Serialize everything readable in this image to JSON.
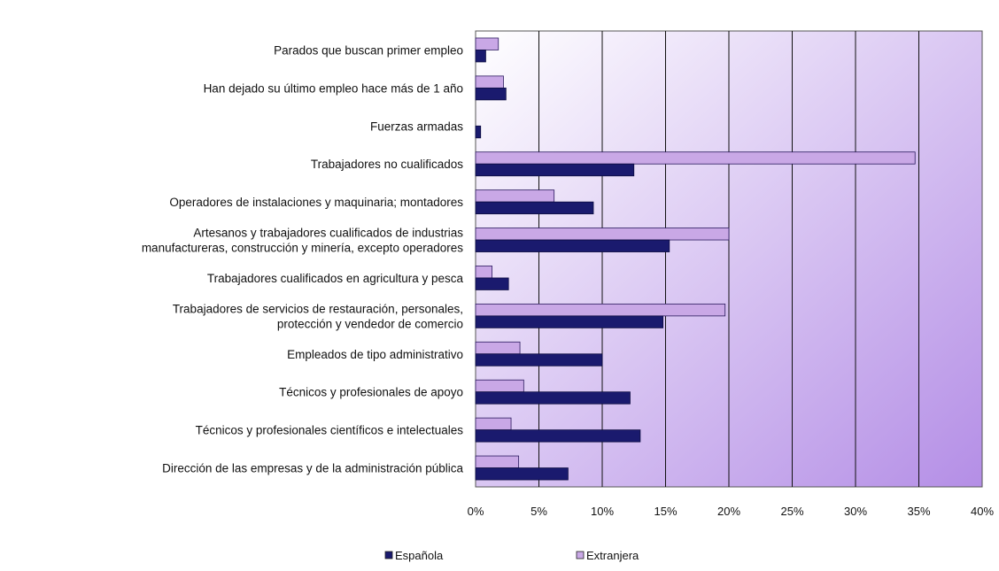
{
  "chart_data": {
    "type": "bar",
    "orientation": "horizontal",
    "categories": [
      [
        "Parados que buscan primer empleo"
      ],
      [
        "Han dejado su último empleo hace más de 1 año"
      ],
      [
        "Fuerzas armadas"
      ],
      [
        "Trabajadores no cualificados"
      ],
      [
        "Operadores de instalaciones y maquinaria; montadores"
      ],
      [
        "Artesanos y trabajadores cualificados de industrias",
        "manufactureras, construcción y minería, excepto operadores"
      ],
      [
        "Trabajadores cualificados en agricultura y pesca"
      ],
      [
        "Trabajadores de servicios de restauración, personales,",
        "protección y vendedor de comercio"
      ],
      [
        "Empleados de tipo administrativo"
      ],
      [
        "Técnicos y profesionales de apoyo"
      ],
      [
        "Técnicos y profesionales científicos e intelectuales"
      ],
      [
        "Dirección de las empresas y de la administración pública"
      ]
    ],
    "series": [
      {
        "name": "Española",
        "color": "#1a1a6e",
        "values": [
          0.8,
          2.4,
          0.4,
          12.5,
          9.3,
          15.3,
          2.6,
          14.8,
          10.0,
          12.2,
          13.0,
          7.3
        ]
      },
      {
        "name": "Extranjera",
        "color": "#c9a8e6",
        "values": [
          1.8,
          2.2,
          0.0,
          34.7,
          6.2,
          20.0,
          1.3,
          19.7,
          3.5,
          3.8,
          2.8,
          3.4
        ]
      }
    ],
    "xlim": [
      0,
      40
    ],
    "xticks": [
      "0%",
      "5%",
      "10%",
      "15%",
      "20%",
      "25%",
      "30%",
      "35%",
      "40%"
    ],
    "xtick_values": [
      0,
      5,
      10,
      15,
      20,
      25,
      30,
      35,
      40
    ],
    "grid": true,
    "legend_position": "bottom",
    "plot_background": [
      "#ffffff",
      "#b48ee6"
    ]
  }
}
